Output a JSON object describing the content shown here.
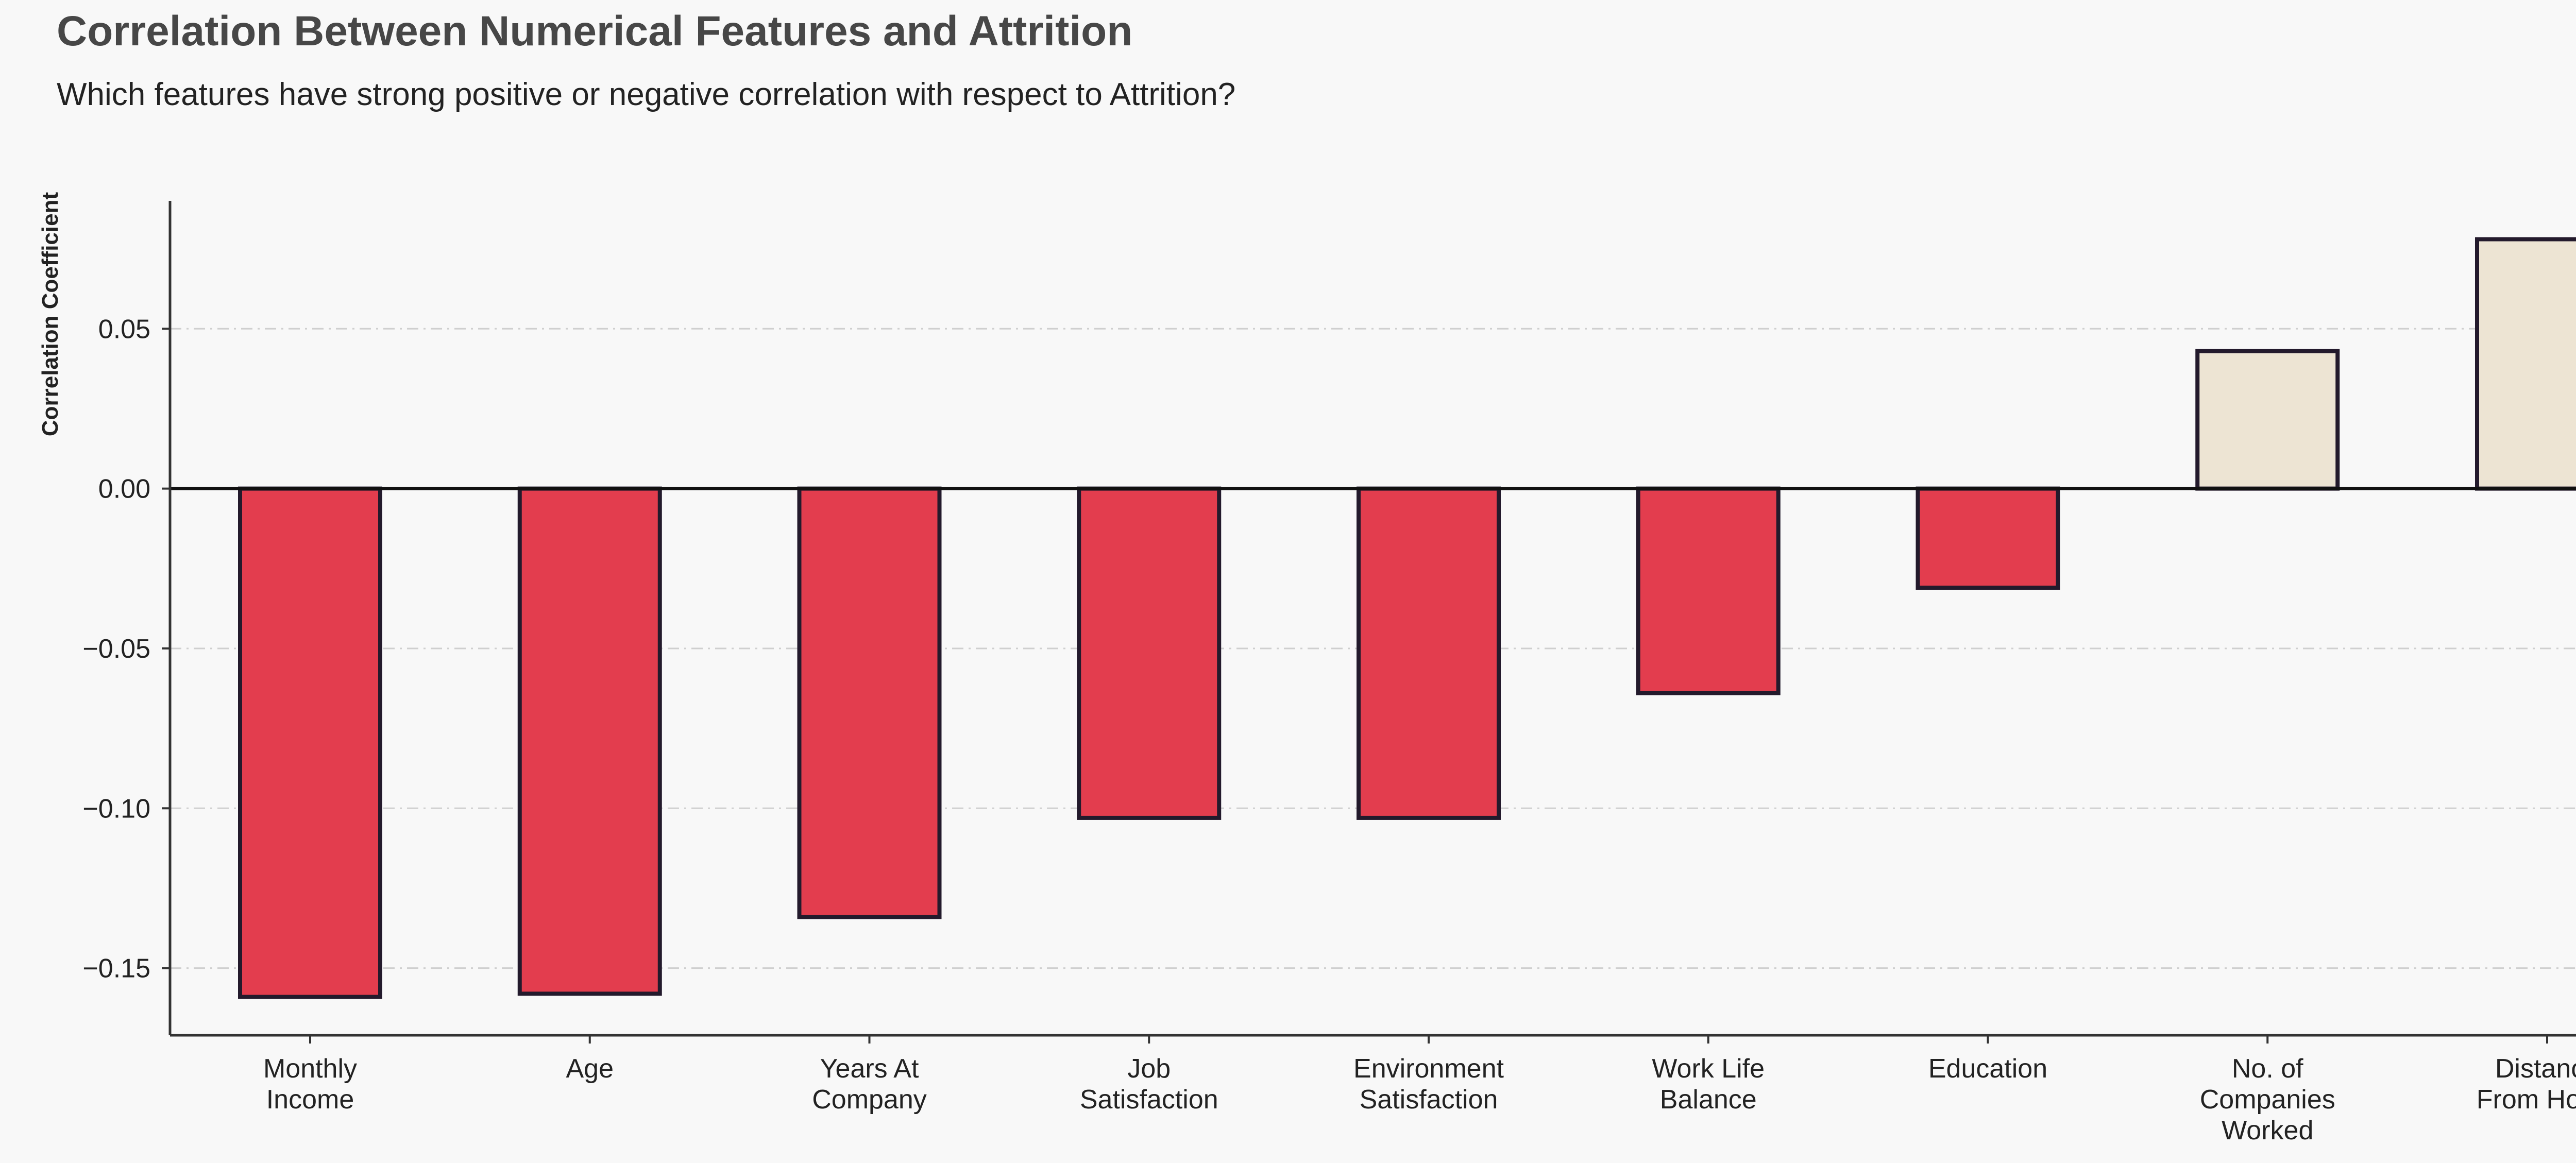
{
  "title": "Correlation Between Numerical Features and Attrition",
  "subtitle": "Which features have strong positive or negative correlation with respect to Attrition?",
  "chart_data": {
    "type": "bar",
    "categories": [
      [
        "Monthly",
        "Income"
      ],
      [
        "Age"
      ],
      [
        "Years At",
        "Company"
      ],
      [
        "Job",
        "Satisfaction"
      ],
      [
        "Environment",
        "Satisfaction"
      ],
      [
        "Work Life",
        "Balance"
      ],
      [
        "Education"
      ],
      [
        "No. of",
        "Companies",
        "Worked"
      ],
      [
        "Distance",
        "From Home"
      ]
    ],
    "values": [
      -0.159,
      -0.158,
      -0.134,
      -0.103,
      -0.103,
      -0.064,
      -0.031,
      0.043,
      0.078
    ],
    "ylabel": "Correlation Coefficient",
    "xlabel": "",
    "ylim": [
      -0.171,
      0.09
    ],
    "yticks": [
      -0.15,
      -0.1,
      -0.05,
      0.0,
      0.05
    ],
    "ytick_labels": [
      "−0.15",
      "−0.10",
      "−0.05",
      "0.00",
      "0.05"
    ],
    "grid": "horizontal dashed",
    "colors": {
      "negative": "#e33d4e",
      "positive": "#ede4d3",
      "edge": "#231a2c",
      "zero_line": "#111111",
      "grid": "#cfcfcf",
      "axis": "#333333"
    }
  }
}
